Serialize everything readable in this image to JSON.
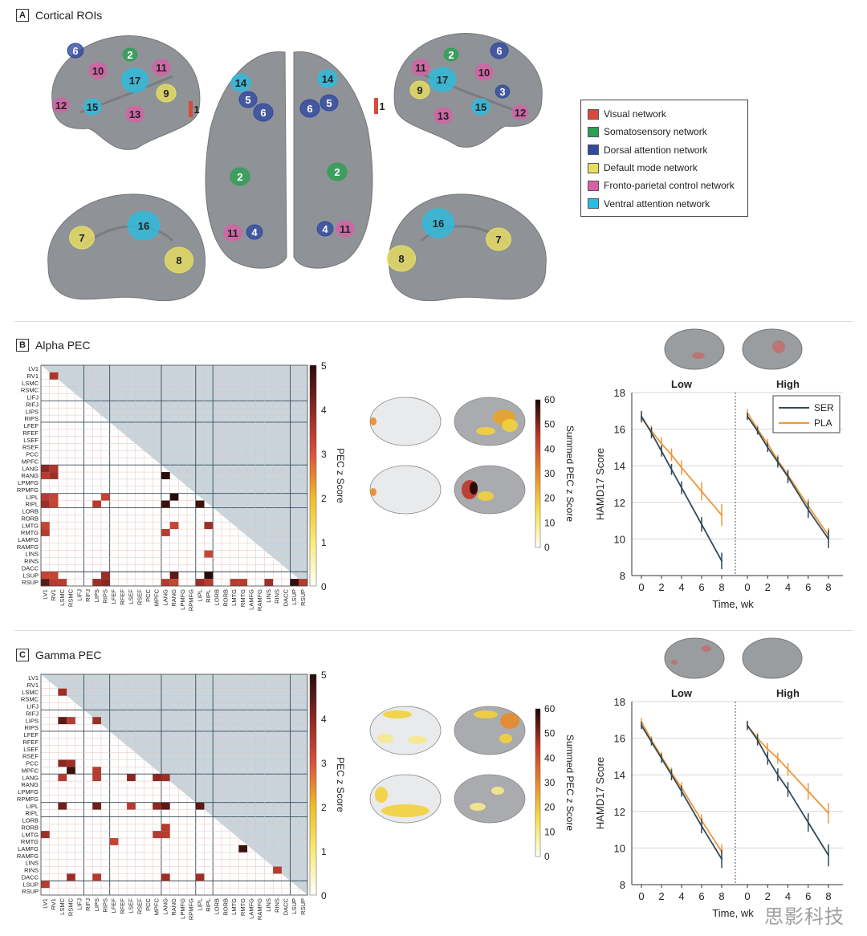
{
  "section_a": {
    "letter": "A",
    "title": "Cortical ROIs",
    "networks": [
      {
        "label": "Visual network",
        "color": "#d94a3d"
      },
      {
        "label": "Somatosensory network",
        "color": "#2aa053"
      },
      {
        "label": "Dorsal attention network",
        "color": "#2f4aa0"
      },
      {
        "label": "Default mode network",
        "color": "#e8df62"
      },
      {
        "label": "Fronto-parietal control network",
        "color": "#d860a8"
      },
      {
        "label": "Ventral attention network",
        "color": "#2bbde0"
      }
    ],
    "rois": {
      "lateral_left": [
        {
          "n": "6",
          "net": 2
        },
        {
          "n": "10",
          "net": 4
        },
        {
          "n": "2",
          "net": 1
        },
        {
          "n": "11",
          "net": 4
        },
        {
          "n": "17",
          "net": 5
        },
        {
          "n": "9",
          "net": 3
        },
        {
          "n": "12",
          "net": 4
        },
        {
          "n": "15",
          "net": 5
        },
        {
          "n": "13",
          "net": 4
        },
        {
          "n": "1",
          "net": 0
        }
      ],
      "dorsal": [
        {
          "n": "14",
          "net": 5
        },
        {
          "n": "5",
          "net": 2
        },
        {
          "n": "6",
          "net": 2
        },
        {
          "n": "2",
          "net": 1
        },
        {
          "n": "11",
          "net": 4
        },
        {
          "n": "4",
          "net": 2
        },
        {
          "n": "14",
          "net": 5
        },
        {
          "n": "6",
          "net": 2
        },
        {
          "n": "5",
          "net": 2
        },
        {
          "n": "2",
          "net": 1
        },
        {
          "n": "4",
          "net": 2
        },
        {
          "n": "11",
          "net": 4
        }
      ],
      "lateral_right": [
        {
          "n": "2",
          "net": 1
        },
        {
          "n": "6",
          "net": 2
        },
        {
          "n": "10",
          "net": 4
        },
        {
          "n": "11",
          "net": 4
        },
        {
          "n": "17",
          "net": 5
        },
        {
          "n": "9",
          "net": 3
        },
        {
          "n": "3",
          "net": 2
        },
        {
          "n": "15",
          "net": 5
        },
        {
          "n": "12",
          "net": 4
        },
        {
          "n": "13",
          "net": 4
        },
        {
          "n": "1",
          "net": 0
        }
      ],
      "medial_left": [
        {
          "n": "7",
          "net": 3
        },
        {
          "n": "16",
          "net": 5
        },
        {
          "n": "8",
          "net": 3
        }
      ],
      "medial_right": [
        {
          "n": "16",
          "net": 5
        },
        {
          "n": "7",
          "net": 3
        },
        {
          "n": "8",
          "net": 3
        }
      ]
    }
  },
  "section_b": {
    "letter": "B",
    "title": "Alpha PEC"
  },
  "section_c": {
    "letter": "C",
    "title": "Gamma PEC"
  },
  "brain_insets": {
    "low": "Low",
    "high": "High"
  },
  "summed_colorbar": {
    "label": "Summed PEC z Score",
    "ticks": [
      "60",
      "50",
      "40",
      "30",
      "20",
      "10",
      "0"
    ]
  },
  "chart_data": [
    {
      "type": "heatmap",
      "title": "Alpha PEC",
      "labels": [
        "LV1",
        "RV1",
        "LSMC",
        "RSMC",
        "LIFJ",
        "RIFJ",
        "LIPS",
        "RIPS",
        "LFEF",
        "RFEF",
        "LSEF",
        "RSEF",
        "PCC",
        "MPFC",
        "LANG",
        "RANG",
        "LPMFG",
        "RPMFG",
        "LIPL",
        "RIPL",
        "LORB",
        "RORB",
        "LMTG",
        "RMTG",
        "LAMFG",
        "RAMFG",
        "LINS",
        "RINS",
        "DACC",
        "LSUP",
        "RSUP"
      ],
      "colorbar": {
        "label": "PEC z Score",
        "range": [
          0,
          5
        ],
        "ticks": [
          "5",
          "4",
          "3",
          "2",
          "1",
          "0"
        ]
      },
      "cells": [
        [
          1,
          1,
          3.6
        ],
        [
          14,
          0,
          4.0
        ],
        [
          14,
          1,
          3.6
        ],
        [
          15,
          0,
          3.5
        ],
        [
          15,
          1,
          3.8
        ],
        [
          15,
          14,
          5.0
        ],
        [
          18,
          0,
          3.5
        ],
        [
          18,
          1,
          3.3
        ],
        [
          18,
          7,
          3.3
        ],
        [
          18,
          15,
          5.0
        ],
        [
          19,
          0,
          3.8
        ],
        [
          19,
          1,
          3.3
        ],
        [
          19,
          6,
          3.5
        ],
        [
          19,
          14,
          4.8
        ],
        [
          19,
          18,
          4.8
        ],
        [
          22,
          0,
          3.3
        ],
        [
          22,
          15,
          3.3
        ],
        [
          22,
          19,
          3.8
        ],
        [
          23,
          0,
          3.5
        ],
        [
          23,
          14,
          3.5
        ],
        [
          26,
          19,
          3.3
        ],
        [
          29,
          0,
          3.3
        ],
        [
          29,
          1,
          3.3
        ],
        [
          29,
          7,
          3.8
        ],
        [
          29,
          15,
          4.5
        ],
        [
          29,
          19,
          5.0
        ],
        [
          30,
          0,
          4.5
        ],
        [
          30,
          1,
          3.5
        ],
        [
          30,
          2,
          3.5
        ],
        [
          30,
          6,
          3.8
        ],
        [
          30,
          7,
          4.0
        ],
        [
          30,
          14,
          3.5
        ],
        [
          30,
          15,
          3.3
        ],
        [
          30,
          18,
          3.8
        ],
        [
          30,
          19,
          3.5
        ],
        [
          30,
          22,
          3.5
        ],
        [
          30,
          23,
          3.5
        ],
        [
          30,
          26,
          3.8
        ],
        [
          30,
          29,
          4.9
        ],
        [
          30,
          30,
          3.5
        ]
      ]
    },
    {
      "type": "line",
      "title": "Alpha PEC HAMD17",
      "xlabel": "Time, wk",
      "ylabel": "HAMD17 Score",
      "ylim": [
        8,
        18
      ],
      "yticks": [
        "8",
        "10",
        "12",
        "14",
        "16",
        "18"
      ],
      "xticks": [
        "0",
        "2",
        "4",
        "6",
        "8"
      ],
      "x": [
        0,
        1,
        2,
        3,
        4,
        6,
        8
      ],
      "legend": {
        "position": "top-right",
        "entries": [
          "SER",
          "PLA"
        ]
      },
      "panels": [
        {
          "name": "Low",
          "series": [
            {
              "name": "SER",
              "color": "#2f4b5a",
              "values": [
                16.7,
                15.8,
                14.8,
                13.8,
                12.8,
                10.8,
                8.8
              ],
              "err": [
                0.3,
                0.3,
                0.3,
                0.3,
                0.35,
                0.4,
                0.45
              ]
            },
            {
              "name": "PLA",
              "color": "#f0953a",
              "values": [
                16.6,
                15.9,
                15.2,
                14.6,
                13.9,
                12.6,
                11.3
              ],
              "err": [
                0.25,
                0.3,
                0.35,
                0.35,
                0.4,
                0.5,
                0.6
              ]
            }
          ]
        },
        {
          "name": "High",
          "series": [
            {
              "name": "SER",
              "color": "#2f4b5a",
              "values": [
                16.7,
                15.9,
                15.0,
                14.2,
                13.4,
                11.6,
                10.0
              ],
              "err": [
                0.2,
                0.2,
                0.25,
                0.3,
                0.35,
                0.45,
                0.5
              ]
            },
            {
              "name": "PLA",
              "color": "#f0953a",
              "values": [
                16.9,
                16.0,
                15.2,
                14.3,
                13.5,
                11.8,
                10.2
              ],
              "err": [
                0.2,
                0.2,
                0.25,
                0.3,
                0.3,
                0.4,
                0.4
              ]
            }
          ]
        }
      ]
    },
    {
      "type": "heatmap",
      "title": "Gamma PEC",
      "labels": [
        "LV1",
        "RV1",
        "LSMC",
        "RSMC",
        "LIFJ",
        "RIFJ",
        "LIPS",
        "RIPS",
        "LFEF",
        "RFEF",
        "LSEF",
        "RSEF",
        "PCC",
        "MPFC",
        "LANG",
        "RANG",
        "LPMFG",
        "RPMFG",
        "LIPL",
        "RIPL",
        "LORB",
        "RORB",
        "LMTG",
        "RMTG",
        "LAMFG",
        "RAMFG",
        "LINS",
        "RINS",
        "DACC",
        "LSUP",
        "RSUP"
      ],
      "colorbar": {
        "label": "PEC z Score",
        "range": [
          0,
          5
        ],
        "ticks": [
          "5",
          "4",
          "3",
          "2",
          "1",
          "0"
        ]
      },
      "cells": [
        [
          2,
          2,
          3.8
        ],
        [
          6,
          2,
          4.5
        ],
        [
          6,
          3,
          3.5
        ],
        [
          6,
          6,
          3.8
        ],
        [
          12,
          2,
          4.0
        ],
        [
          12,
          3,
          3.8
        ],
        [
          13,
          3,
          4.8
        ],
        [
          13,
          6,
          3.5
        ],
        [
          14,
          2,
          3.5
        ],
        [
          14,
          6,
          3.5
        ],
        [
          14,
          10,
          4.0
        ],
        [
          14,
          13,
          4.0
        ],
        [
          14,
          14,
          3.8
        ],
        [
          18,
          2,
          4.3
        ],
        [
          18,
          6,
          4.3
        ],
        [
          18,
          10,
          3.5
        ],
        [
          18,
          13,
          4.0
        ],
        [
          18,
          14,
          4.5
        ],
        [
          18,
          18,
          4.5
        ],
        [
          21,
          14,
          3.5
        ],
        [
          22,
          0,
          3.8
        ],
        [
          22,
          13,
          3.5
        ],
        [
          22,
          14,
          3.5
        ],
        [
          23,
          8,
          3.3
        ],
        [
          24,
          23,
          4.8
        ],
        [
          27,
          27,
          3.5
        ],
        [
          28,
          3,
          3.8
        ],
        [
          28,
          6,
          3.5
        ],
        [
          28,
          14,
          3.8
        ],
        [
          28,
          18,
          3.8
        ],
        [
          29,
          0,
          3.5
        ]
      ]
    },
    {
      "type": "line",
      "title": "Gamma PEC HAMD17",
      "xlabel": "Time, wk",
      "ylabel": "HAMD17 Score",
      "ylim": [
        8,
        18
      ],
      "yticks": [
        "8",
        "10",
        "12",
        "14",
        "16",
        "18"
      ],
      "xticks": [
        "0",
        "2",
        "4",
        "6",
        "8"
      ],
      "x": [
        0,
        1,
        2,
        3,
        4,
        6,
        8
      ],
      "panels": [
        {
          "name": "Low",
          "series": [
            {
              "name": "SER",
              "color": "#2f4b5a",
              "values": [
                16.7,
                15.8,
                14.9,
                14.0,
                13.1,
                11.2,
                9.4
              ],
              "err": [
                0.2,
                0.2,
                0.25,
                0.3,
                0.3,
                0.4,
                0.5
              ]
            },
            {
              "name": "PLA",
              "color": "#f0953a",
              "values": [
                16.9,
                15.9,
                15.0,
                14.1,
                13.3,
                11.5,
                9.8
              ],
              "err": [
                0.2,
                0.2,
                0.25,
                0.3,
                0.3,
                0.35,
                0.4
              ]
            }
          ]
        },
        {
          "name": "High",
          "series": [
            {
              "name": "SER",
              "color": "#2f4b5a",
              "values": [
                16.7,
                15.9,
                14.9,
                14.0,
                13.2,
                11.4,
                9.6
              ],
              "err": [
                0.25,
                0.3,
                0.35,
                0.35,
                0.4,
                0.5,
                0.6
              ]
            },
            {
              "name": "PLA",
              "color": "#f0953a",
              "values": [
                16.7,
                16.0,
                15.4,
                14.9,
                14.3,
                13.1,
                11.9
              ],
              "err": [
                0.25,
                0.3,
                0.35,
                0.3,
                0.35,
                0.45,
                0.55
              ]
            }
          ]
        }
      ]
    }
  ],
  "watermark": "思影科技"
}
